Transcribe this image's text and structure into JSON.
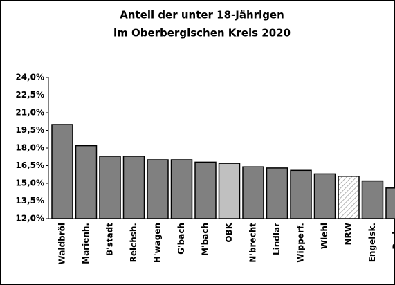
{
  "chart_data": {
    "type": "bar",
    "title": [
      "Anteil der unter 18-Jährigen",
      "im Oberbergischen Kreis 2020"
    ],
    "categories": [
      "Waldbröl",
      "Marienh.",
      "B'stadt",
      "Reichsh.",
      "H'wagen",
      "G'bach",
      "M'bach",
      "OBK",
      "N'brecht",
      "Lindlar",
      "Wipperf.",
      "Wiehl",
      "NRW",
      "Engelsk.",
      "Rade."
    ],
    "values": [
      20.0,
      18.2,
      17.3,
      17.3,
      17.0,
      17.0,
      16.8,
      16.7,
      16.4,
      16.3,
      16.1,
      15.8,
      15.6,
      15.2,
      14.6
    ],
    "colors": [
      "#808080",
      "#808080",
      "#808080",
      "#808080",
      "#808080",
      "#808080",
      "#808080",
      "#c0c0c0",
      "#808080",
      "#808080",
      "#808080",
      "#808080",
      "url(#hatch)",
      "#808080",
      "#808080"
    ],
    "ylim": [
      12.0,
      24.0
    ],
    "yticks": [
      {
        "value": 12.0,
        "label": "12,0%"
      },
      {
        "value": 13.5,
        "label": "13,5%"
      },
      {
        "value": 15.0,
        "label": "15,0%"
      },
      {
        "value": 16.5,
        "label": "16,5%"
      },
      {
        "value": 18.0,
        "label": "18,0%"
      },
      {
        "value": 19.5,
        "label": "19,5%"
      },
      {
        "value": 21.0,
        "label": "21,0%"
      },
      {
        "value": 22.5,
        "label": "22,5%"
      },
      {
        "value": 24.0,
        "label": "24,0%"
      }
    ],
    "grid": false
  }
}
